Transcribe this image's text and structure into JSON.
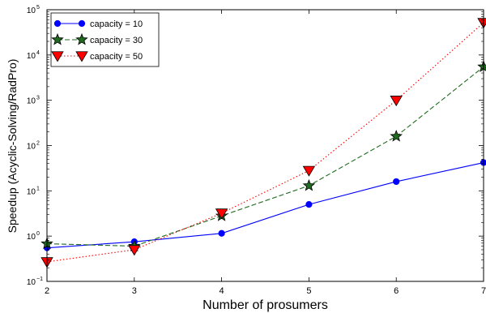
{
  "chart_data": {
    "type": "line",
    "xlabel": "Number of prosumers",
    "ylabel": "Speedup (Acyclic-Solving/RadPro)",
    "x": [
      2,
      3,
      4,
      5,
      6,
      7
    ],
    "xlim": [
      2,
      7
    ],
    "ylim": [
      0.1,
      100000
    ],
    "yscale": "log",
    "x_tick_labels": [
      "2",
      "3",
      "4",
      "5",
      "6",
      "7"
    ],
    "y_tick_labels": [
      {
        "base": "10",
        "exp": "−1"
      },
      {
        "base": "10",
        "exp": "0"
      },
      {
        "base": "10",
        "exp": "1"
      },
      {
        "base": "10",
        "exp": "2"
      },
      {
        "base": "10",
        "exp": "3"
      },
      {
        "base": "10",
        "exp": "4"
      },
      {
        "base": "10",
        "exp": "5"
      }
    ],
    "legend_position": "top-left",
    "grid": false,
    "series": [
      {
        "name": "capacity = 10",
        "values": [
          0.55,
          0.75,
          1.15,
          5.0,
          16,
          42
        ],
        "color": "#0000ff",
        "marker": "circle",
        "linestyle": "solid"
      },
      {
        "name": "capacity = 30",
        "values": [
          0.68,
          0.6,
          2.8,
          13,
          160,
          5500
        ],
        "color": "#1f6b1f",
        "marker": "star",
        "linestyle": "dashed"
      },
      {
        "name": "capacity = 50",
        "values": [
          0.27,
          0.5,
          3.2,
          28,
          1000,
          52000
        ],
        "color": "#ff0000",
        "marker": "triangle-down",
        "linestyle": "dotted"
      }
    ]
  }
}
